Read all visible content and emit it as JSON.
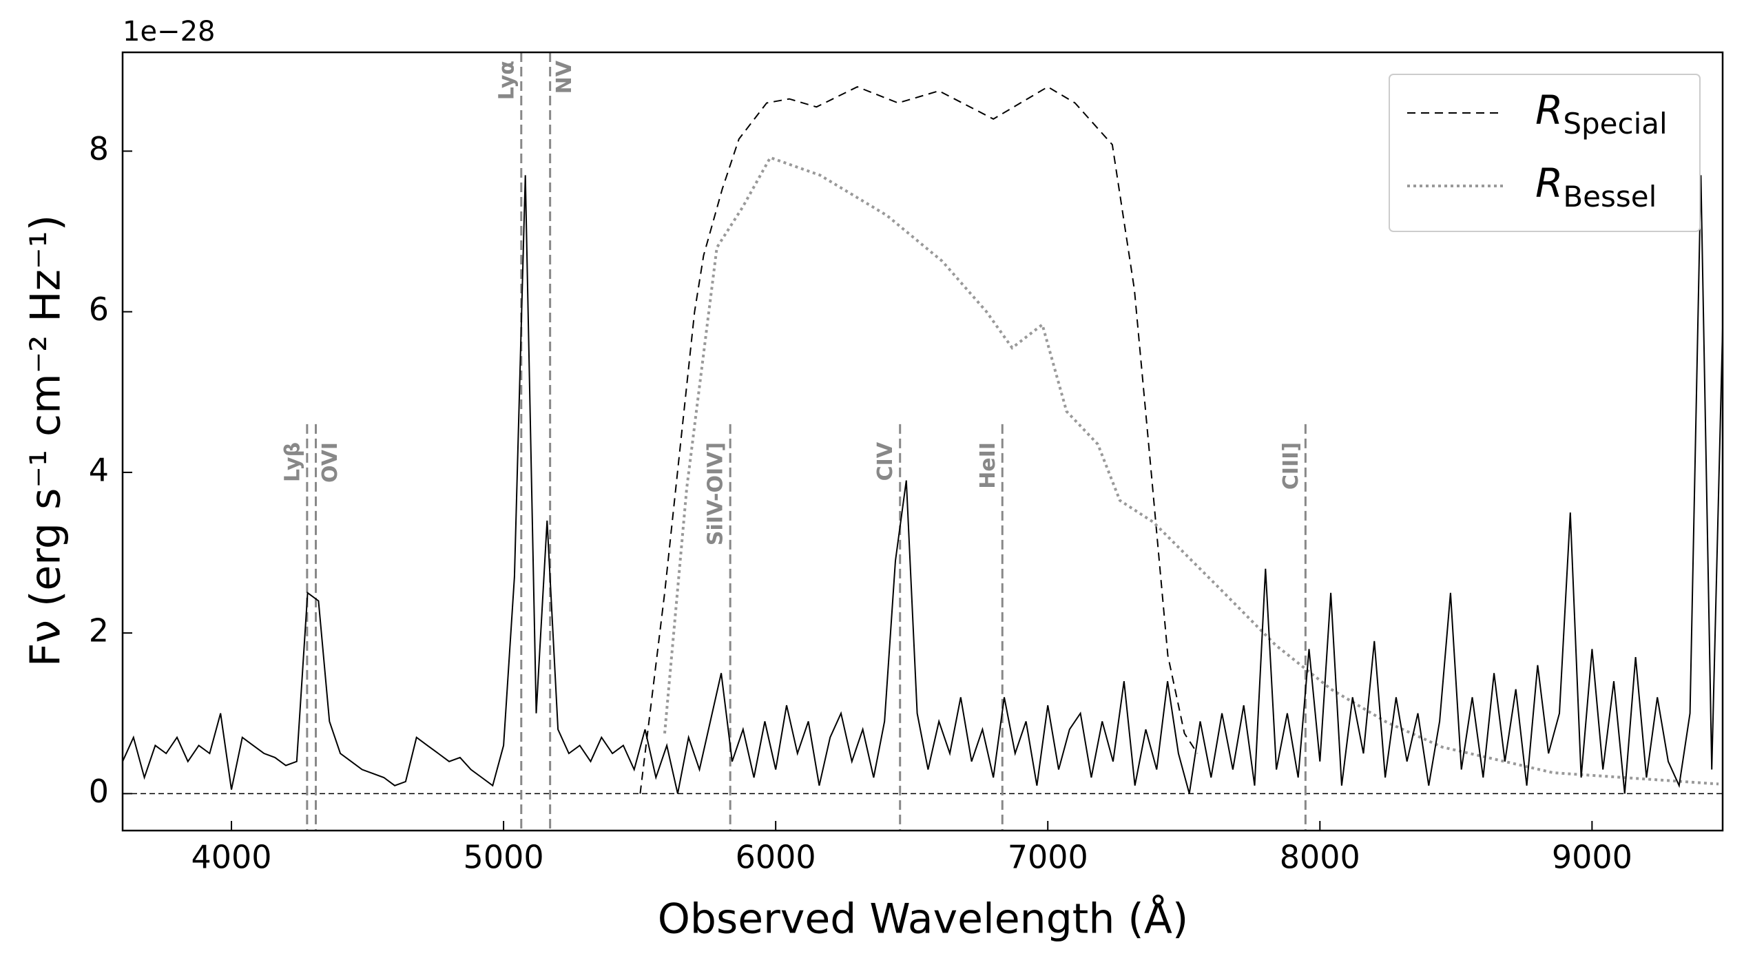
{
  "chart_data": {
    "type": "spectrum",
    "xlabel": "Observed Wavelength (Å)",
    "ylabel": "Fν (erg s⁻¹ cm⁻² Hz⁻¹)",
    "offset_text": "1e−28",
    "xlim": [
      3600,
      9480
    ],
    "ylim": [
      -0.46,
      9.23
    ],
    "xticks": [
      4000,
      5000,
      6000,
      7000,
      8000,
      9000
    ],
    "yticks": [
      0,
      2,
      4,
      6,
      8
    ],
    "hline": 0,
    "spectrum": {
      "color": "#000000",
      "x": [
        3600,
        3640,
        3680,
        3720,
        3760,
        3800,
        3840,
        3880,
        3920,
        3960,
        4000,
        4040,
        4080,
        4120,
        4160,
        4200,
        4240,
        4280,
        4320,
        4360,
        4400,
        4440,
        4480,
        4520,
        4560,
        4600,
        4640,
        4680,
        4720,
        4760,
        4800,
        4840,
        4880,
        4920,
        4960,
        5000,
        5040,
        5080,
        5120,
        5160,
        5200,
        5240,
        5280,
        5320,
        5360,
        5400,
        5440,
        5480,
        5520,
        5560,
        5600,
        5640,
        5680,
        5720,
        5760,
        5800,
        5840,
        5880,
        5920,
        5960,
        6000,
        6040,
        6080,
        6120,
        6160,
        6200,
        6240,
        6280,
        6320,
        6360,
        6400,
        6440,
        6480,
        6520,
        6560,
        6600,
        6640,
        6680,
        6720,
        6760,
        6800,
        6840,
        6880,
        6920,
        6960,
        7000,
        7040,
        7080,
        7120,
        7160,
        7200,
        7240,
        7280,
        7320,
        7360,
        7400,
        7440,
        7480,
        7520,
        7560,
        7600,
        7640,
        7680,
        7720,
        7760,
        7800,
        7840,
        7880,
        7920,
        7960,
        8000,
        8040,
        8080,
        8120,
        8160,
        8200,
        8240,
        8280,
        8320,
        8360,
        8400,
        8440,
        8480,
        8520,
        8560,
        8600,
        8640,
        8680,
        8720,
        8760,
        8800,
        8840,
        8880,
        8920,
        8960,
        9000,
        9040,
        9080,
        9120,
        9160,
        9200,
        9240,
        9280,
        9320,
        9360,
        9400,
        9440,
        9480
      ],
      "values": [
        0.4,
        0.7,
        0.2,
        0.6,
        0.5,
        0.7,
        0.4,
        0.6,
        0.5,
        1.0,
        0.05,
        0.7,
        0.6,
        0.5,
        0.45,
        0.35,
        0.4,
        2.5,
        2.4,
        0.9,
        0.5,
        0.4,
        0.3,
        0.25,
        0.2,
        0.1,
        0.15,
        0.7,
        0.6,
        0.5,
        0.4,
        0.45,
        0.3,
        0.2,
        0.1,
        0.6,
        2.7,
        7.7,
        1.0,
        3.4,
        0.8,
        0.5,
        0.6,
        0.4,
        0.7,
        0.5,
        0.6,
        0.3,
        0.8,
        0.2,
        0.6,
        0.0,
        0.7,
        0.3,
        0.9,
        1.5,
        0.4,
        0.8,
        0.2,
        0.9,
        0.3,
        1.1,
        0.5,
        0.9,
        0.1,
        0.7,
        1.0,
        0.4,
        0.8,
        0.2,
        0.9,
        2.9,
        3.9,
        1.0,
        0.3,
        0.9,
        0.5,
        1.2,
        0.4,
        0.8,
        0.2,
        1.2,
        0.5,
        0.9,
        0.1,
        1.1,
        0.3,
        0.8,
        1.0,
        0.2,
        0.9,
        0.4,
        1.4,
        0.1,
        0.8,
        0.3,
        1.4,
        0.5,
        0.0,
        0.9,
        0.2,
        1.0,
        0.3,
        1.1,
        0.1,
        2.8,
        0.3,
        1.0,
        0.2,
        1.8,
        0.4,
        2.5,
        0.1,
        1.2,
        0.5,
        1.9,
        0.2,
        1.2,
        0.4,
        1.0,
        0.1,
        0.9,
        2.5,
        0.3,
        1.2,
        0.2,
        1.5,
        0.4,
        1.3,
        0.1,
        1.6,
        0.5,
        1.0,
        3.5,
        0.2,
        1.8,
        0.3,
        1.4,
        0.0,
        1.7,
        0.2,
        1.2,
        0.4,
        0.1,
        1.0,
        7.7,
        0.3,
        5.8
      ]
    },
    "series": [
      {
        "name": "R",
        "subscript": "Special",
        "color": "#000000",
        "dash": "dashed",
        "x": [
          5502,
          5592,
          5702,
          5735,
          5804,
          5865,
          5967,
          6050,
          6150,
          6300,
          6450,
          6600,
          6800,
          7000,
          7100,
          7237,
          7318,
          7380,
          7441,
          7502,
          7550
        ],
        "values": [
          0.0,
          2.5,
          6.0,
          6.7,
          7.53,
          8.15,
          8.6,
          8.65,
          8.55,
          8.8,
          8.6,
          8.75,
          8.4,
          8.8,
          8.6,
          8.08,
          6.28,
          4.0,
          1.72,
          0.75,
          0.5
        ]
      },
      {
        "name": "R",
        "subscript": "Bessel",
        "color": "#999999",
        "dash": "dotted",
        "x": [
          5592,
          5673,
          5784,
          5878,
          5980,
          6163,
          6408,
          6612,
          6775,
          6869,
          6980,
          7069,
          7184,
          7265,
          7388,
          7633,
          7837,
          8041,
          8245,
          8449,
          8857,
          9465
        ],
        "values": [
          0.75,
          3.8,
          6.8,
          7.3,
          7.92,
          7.7,
          7.2,
          6.63,
          6.0,
          5.55,
          5.84,
          4.76,
          4.35,
          3.65,
          3.38,
          2.55,
          1.85,
          1.3,
          0.89,
          0.58,
          0.26,
          0.12
        ]
      }
    ],
    "legend": "upper right",
    "lines": [
      {
        "label": "Lyβ",
        "x": 4278,
        "top": 4.6,
        "side": "left"
      },
      {
        "label": "OVI",
        "x": 4310,
        "top": 4.6,
        "side": "right"
      },
      {
        "label": "Lyα",
        "x": 5065,
        "top": 9.23,
        "side": "left"
      },
      {
        "label": "NV",
        "x": 5171,
        "top": 9.23,
        "side": "right"
      },
      {
        "label": "SiIV-OIV]",
        "x": 5833,
        "top": 4.6,
        "side": "left"
      },
      {
        "label": "CIV",
        "x": 6457,
        "top": 4.6,
        "side": "left"
      },
      {
        "label": "HeII",
        "x": 6833,
        "top": 4.6,
        "side": "left"
      },
      {
        "label": "CIII]",
        "x": 7947,
        "top": 4.6,
        "side": "left"
      }
    ]
  }
}
